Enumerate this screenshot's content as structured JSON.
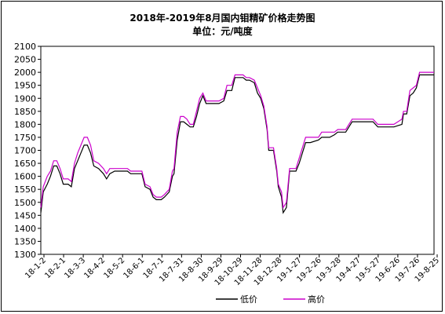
{
  "chart_data": {
    "type": "line",
    "title": "2018年-2019年8月国内钼精矿价格走势图",
    "subtitle": "单位：元/吨度",
    "xlabel": "",
    "ylabel": "",
    "ylim": [
      1300,
      2100
    ],
    "yticks": [
      1300,
      1350,
      1400,
      1450,
      1500,
      1550,
      1600,
      1650,
      1700,
      1750,
      1800,
      1850,
      1900,
      1950,
      2000,
      2050,
      2100
    ],
    "xticks": [
      "18-1-2",
      "18-2-1",
      "18-3-3",
      "18-4-2",
      "18-5-2",
      "18-6-1",
      "18-7-1",
      "18-7-31",
      "18-8-30",
      "18-9-29",
      "18-10-29",
      "18-11-28",
      "18-12-28",
      "19-1-27",
      "19-2-26",
      "19-3-28",
      "19-4-27",
      "19-5-27",
      "19-6-26",
      "19-7-26",
      "19-8-25"
    ],
    "grid": false,
    "legend_position": "bottom",
    "series": [
      {
        "name": "低价",
        "color": "#000000",
        "points": [
          [
            0,
            1460
          ],
          [
            3,
            1540
          ],
          [
            8,
            1570
          ],
          [
            12,
            1600
          ],
          [
            16,
            1640
          ],
          [
            20,
            1640
          ],
          [
            24,
            1610
          ],
          [
            28,
            1570
          ],
          [
            34,
            1570
          ],
          [
            38,
            1560
          ],
          [
            42,
            1630
          ],
          [
            46,
            1660
          ],
          [
            50,
            1690
          ],
          [
            54,
            1720
          ],
          [
            58,
            1720
          ],
          [
            62,
            1690
          ],
          [
            66,
            1640
          ],
          [
            72,
            1630
          ],
          [
            78,
            1610
          ],
          [
            82,
            1590
          ],
          [
            86,
            1610
          ],
          [
            92,
            1620
          ],
          [
            100,
            1620
          ],
          [
            108,
            1620
          ],
          [
            112,
            1610
          ],
          [
            120,
            1610
          ],
          [
            126,
            1610
          ],
          [
            130,
            1560
          ],
          [
            136,
            1550
          ],
          [
            140,
            1520
          ],
          [
            144,
            1510
          ],
          [
            150,
            1510
          ],
          [
            154,
            1520
          ],
          [
            160,
            1540
          ],
          [
            164,
            1600
          ],
          [
            166,
            1610
          ],
          [
            170,
            1740
          ],
          [
            174,
            1810
          ],
          [
            178,
            1810
          ],
          [
            182,
            1800
          ],
          [
            186,
            1790
          ],
          [
            190,
            1790
          ],
          [
            194,
            1830
          ],
          [
            198,
            1880
          ],
          [
            202,
            1910
          ],
          [
            206,
            1880
          ],
          [
            210,
            1880
          ],
          [
            216,
            1880
          ],
          [
            222,
            1880
          ],
          [
            228,
            1890
          ],
          [
            232,
            1930
          ],
          [
            238,
            1930
          ],
          [
            242,
            1980
          ],
          [
            248,
            1980
          ],
          [
            252,
            1980
          ],
          [
            256,
            1970
          ],
          [
            260,
            1970
          ],
          [
            266,
            1960
          ],
          [
            270,
            1920
          ],
          [
            274,
            1900
          ],
          [
            278,
            1860
          ],
          [
            282,
            1780
          ],
          [
            284,
            1700
          ],
          [
            290,
            1700
          ],
          [
            294,
            1620
          ],
          [
            296,
            1560
          ],
          [
            300,
            1520
          ],
          [
            302,
            1460
          ],
          [
            306,
            1480
          ],
          [
            310,
            1620
          ],
          [
            318,
            1620
          ],
          [
            322,
            1650
          ],
          [
            326,
            1690
          ],
          [
            330,
            1730
          ],
          [
            336,
            1730
          ],
          [
            346,
            1740
          ],
          [
            350,
            1750
          ],
          [
            360,
            1750
          ],
          [
            366,
            1760
          ],
          [
            370,
            1770
          ],
          [
            380,
            1770
          ],
          [
            388,
            1810
          ],
          [
            396,
            1810
          ],
          [
            402,
            1810
          ],
          [
            414,
            1810
          ],
          [
            420,
            1790
          ],
          [
            430,
            1790
          ],
          [
            440,
            1790
          ],
          [
            450,
            1800
          ],
          [
            452,
            1840
          ],
          [
            456,
            1840
          ],
          [
            460,
            1910
          ],
          [
            464,
            1920
          ],
          [
            468,
            1940
          ],
          [
            472,
            1990
          ],
          [
            476,
            1990
          ],
          [
            482,
            1990
          ],
          [
            490,
            1990
          ]
        ]
      },
      {
        "name": "高价",
        "color": "#cc00cc",
        "points": [
          [
            0,
            1480
          ],
          [
            3,
            1560
          ],
          [
            8,
            1600
          ],
          [
            12,
            1620
          ],
          [
            16,
            1660
          ],
          [
            20,
            1660
          ],
          [
            24,
            1630
          ],
          [
            28,
            1590
          ],
          [
            34,
            1590
          ],
          [
            38,
            1580
          ],
          [
            42,
            1650
          ],
          [
            46,
            1690
          ],
          [
            50,
            1720
          ],
          [
            54,
            1750
          ],
          [
            58,
            1750
          ],
          [
            62,
            1720
          ],
          [
            66,
            1660
          ],
          [
            72,
            1650
          ],
          [
            78,
            1630
          ],
          [
            82,
            1610
          ],
          [
            86,
            1630
          ],
          [
            92,
            1630
          ],
          [
            100,
            1630
          ],
          [
            108,
            1630
          ],
          [
            112,
            1620
          ],
          [
            120,
            1620
          ],
          [
            126,
            1620
          ],
          [
            130,
            1570
          ],
          [
            136,
            1560
          ],
          [
            140,
            1530
          ],
          [
            144,
            1520
          ],
          [
            150,
            1520
          ],
          [
            154,
            1530
          ],
          [
            160,
            1550
          ],
          [
            164,
            1620
          ],
          [
            166,
            1630
          ],
          [
            170,
            1770
          ],
          [
            174,
            1830
          ],
          [
            178,
            1830
          ],
          [
            182,
            1820
          ],
          [
            186,
            1800
          ],
          [
            190,
            1800
          ],
          [
            194,
            1850
          ],
          [
            198,
            1900
          ],
          [
            202,
            1920
          ],
          [
            206,
            1890
          ],
          [
            210,
            1890
          ],
          [
            216,
            1890
          ],
          [
            222,
            1890
          ],
          [
            228,
            1900
          ],
          [
            232,
            1950
          ],
          [
            238,
            1950
          ],
          [
            242,
            1990
          ],
          [
            248,
            1990
          ],
          [
            252,
            1990
          ],
          [
            256,
            1980
          ],
          [
            260,
            1980
          ],
          [
            266,
            1970
          ],
          [
            270,
            1940
          ],
          [
            274,
            1910
          ],
          [
            278,
            1870
          ],
          [
            282,
            1790
          ],
          [
            284,
            1710
          ],
          [
            290,
            1710
          ],
          [
            294,
            1630
          ],
          [
            296,
            1570
          ],
          [
            300,
            1540
          ],
          [
            302,
            1480
          ],
          [
            306,
            1500
          ],
          [
            310,
            1630
          ],
          [
            318,
            1630
          ],
          [
            322,
            1670
          ],
          [
            326,
            1710
          ],
          [
            330,
            1750
          ],
          [
            336,
            1750
          ],
          [
            346,
            1750
          ],
          [
            350,
            1770
          ],
          [
            360,
            1770
          ],
          [
            366,
            1770
          ],
          [
            370,
            1780
          ],
          [
            380,
            1780
          ],
          [
            388,
            1820
          ],
          [
            396,
            1820
          ],
          [
            402,
            1820
          ],
          [
            414,
            1820
          ],
          [
            420,
            1800
          ],
          [
            430,
            1800
          ],
          [
            440,
            1800
          ],
          [
            450,
            1820
          ],
          [
            452,
            1850
          ],
          [
            456,
            1850
          ],
          [
            460,
            1930
          ],
          [
            464,
            1940
          ],
          [
            468,
            1950
          ],
          [
            472,
            2000
          ],
          [
            476,
            2000
          ],
          [
            482,
            2000
          ],
          [
            490,
            2000
          ]
        ]
      }
    ]
  }
}
